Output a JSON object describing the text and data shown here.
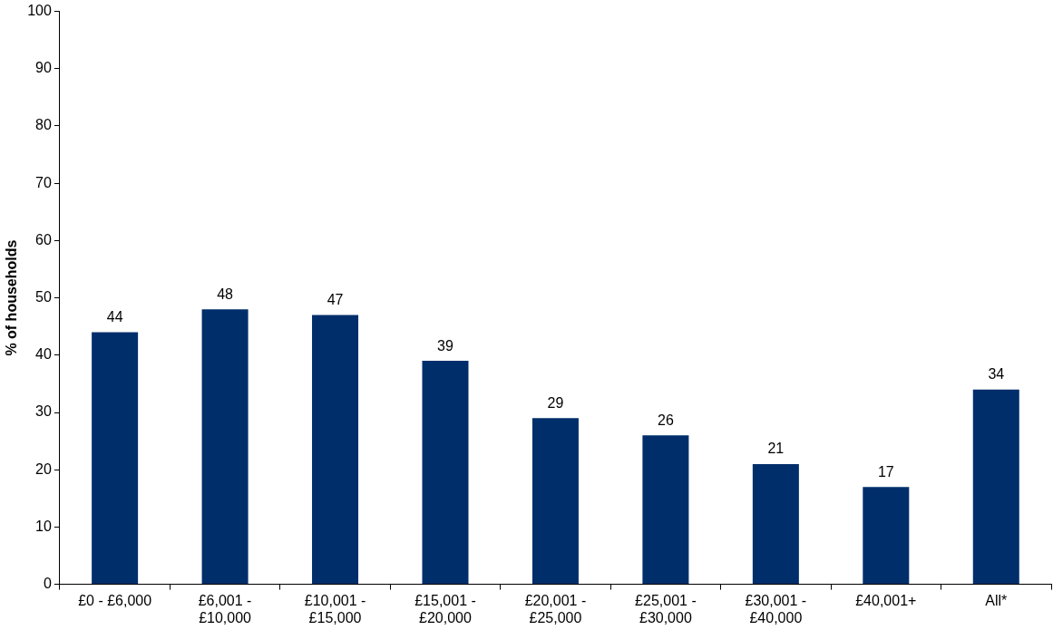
{
  "chart_data": {
    "type": "bar",
    "ylabel": "% of households",
    "categories": [
      "£0 - £6,000",
      "£6,001 - £10,000",
      "£10,001 - £15,000",
      "£15,001 - £20,000",
      "£20,001 - £25,000",
      "£25,001 - £30,000",
      "£30,001 - £40,000",
      "£40,001+",
      "All*"
    ],
    "values": [
      44,
      48,
      47,
      39,
      29,
      26,
      21,
      17,
      34
    ],
    "color": "#002e6b",
    "ylim": [
      0,
      100
    ],
    "yticks": [
      0,
      10,
      20,
      30,
      40,
      50,
      60,
      70,
      80,
      90,
      100
    ],
    "data_labels": true,
    "grid": false,
    "legend": false
  }
}
